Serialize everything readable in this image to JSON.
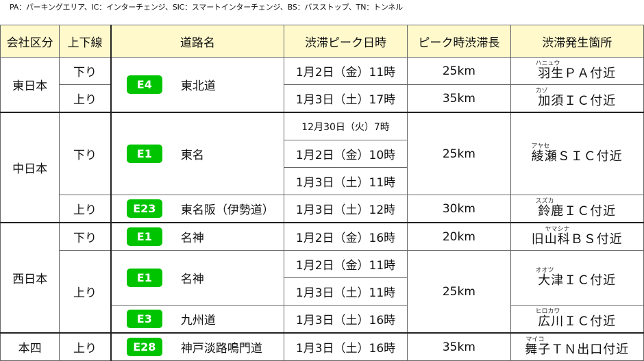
{
  "legend": "PA：パーキングエリア、IC：インターチェンジ、SIC：スマートインターチェンジ、BS：バスストップ、TN：トンネル",
  "headers": [
    "会社区分",
    "上下線",
    "道路名",
    "渋滞ピーク日時",
    "ピーク時渋滞長",
    "渋滞発生箇所"
  ],
  "colors": {
    "header_bg": "#fff9cc",
    "badge": "#00c400"
  },
  "rows": [
    {
      "company": "東日本",
      "direction": "下り",
      "road": {
        "code": "E4",
        "name": "東北道"
      },
      "peak": "1月2日（金）11時",
      "length": "25km",
      "location": {
        "name": "羽生ＰＡ付近",
        "reading": "ハニュウ"
      }
    },
    {
      "direction": "上り",
      "peak": "1月3日（土）17時",
      "length": "35km",
      "location": {
        "name": "加須ＩＣ付近",
        "reading": "カゾ"
      }
    },
    {
      "company": "中日本",
      "direction": "下り",
      "road": {
        "code": "E1",
        "name": "東名"
      },
      "peak": "12月30日（火）7時",
      "length": "25km",
      "location": {
        "name": "綾瀬ＳＩＣ付近",
        "reading": "アヤセ"
      }
    },
    {
      "peak": "1月2日（金）10時"
    },
    {
      "peak": "1月3日（土）11時"
    },
    {
      "direction": "上り",
      "road": {
        "code": "E23",
        "name": "東名阪（伊勢道）"
      },
      "peak": "1月3日（土）12時",
      "length": "30km",
      "location": {
        "name": "鈴鹿ＩＣ付近",
        "reading": "スズカ"
      }
    },
    {
      "company": "西日本",
      "direction": "下り",
      "road": {
        "code": "E1",
        "name": "名神"
      },
      "peak": "1月2日（金）16時",
      "length": "20km",
      "location": {
        "name": "旧山科ＢＳ付近",
        "reading": "ヤマシナ"
      }
    },
    {
      "direction": "上り",
      "road": {
        "code": "E1",
        "name": "名神"
      },
      "peak": "1月2日（金）11時",
      "length": "25km",
      "location": {
        "name": "大津ＩＣ付近",
        "reading": "オオツ"
      }
    },
    {
      "peak": "1月3日（土）11時"
    },
    {
      "road": {
        "code": "E3",
        "name": "九州道"
      },
      "peak": "1月3日（土）16時",
      "location": {
        "name": "広川ＩＣ付近",
        "reading": "ヒロカワ"
      }
    },
    {
      "company": "本四",
      "direction": "上り",
      "road": {
        "code": "E28",
        "name": "神戸淡路鳴門道"
      },
      "peak": "1月3日（土）16時",
      "length": "35km",
      "location": {
        "name": "舞子ＴＮ出口付近",
        "reading": "マイコ"
      }
    }
  ]
}
